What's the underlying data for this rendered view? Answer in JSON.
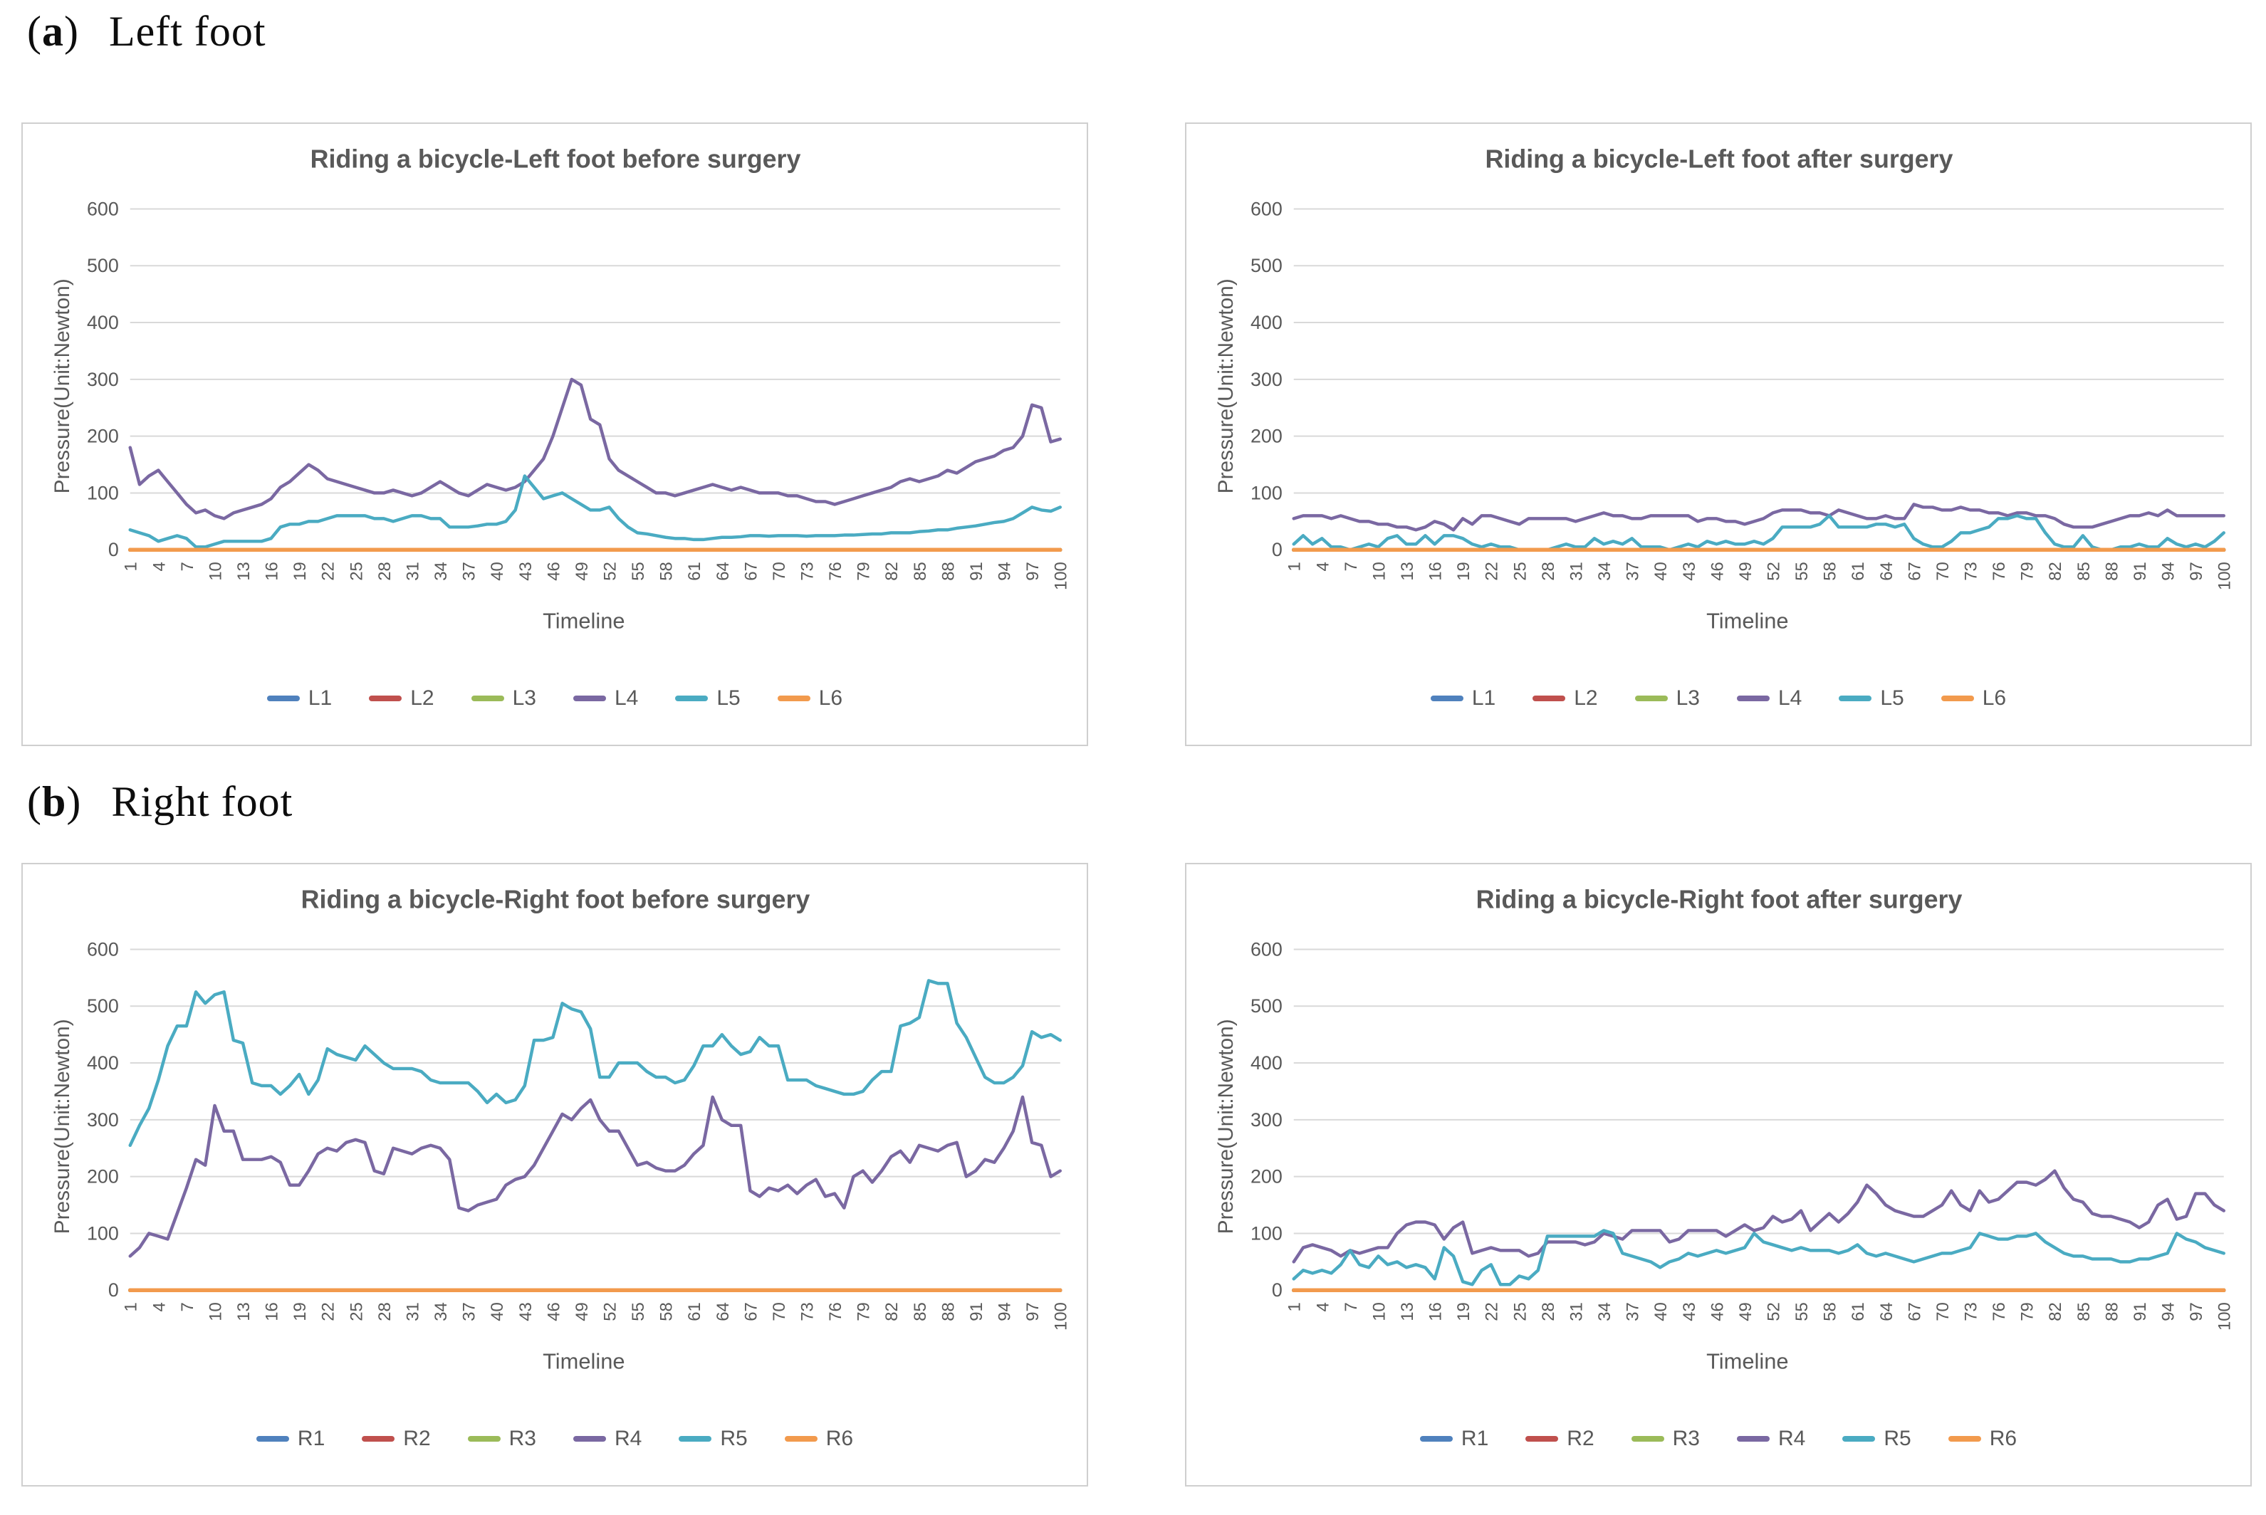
{
  "style": {
    "text_color": "#595959",
    "grid_color": "#d9d9d9",
    "border_color": "#cfcfcf",
    "series_palette": [
      "#4f81bd",
      "#c0504d",
      "#9bbb59",
      "#7a68a2",
      "#4aabc2",
      "#f29a4d"
    ]
  },
  "sections": [
    {
      "open": "(",
      "letter": "a",
      "close": ")",
      "title": "Left foot"
    },
    {
      "open": "(",
      "letter": "b",
      "close": ")",
      "title": "Right foot"
    }
  ],
  "chart_data": [
    {
      "id": "left-before",
      "type": "line",
      "title": "Riding a bicycle-Left foot before surgery",
      "xlabel": "Timeline",
      "ylabel": "Pressure(Unit:Newton)",
      "ylim": [
        0,
        600
      ],
      "yticks": [
        0,
        100,
        200,
        300,
        400,
        500,
        600
      ],
      "xticks": [
        1,
        4,
        7,
        10,
        13,
        16,
        19,
        22,
        25,
        28,
        31,
        34,
        37,
        40,
        43,
        46,
        49,
        52,
        55,
        58,
        61,
        64,
        67,
        70,
        73,
        76,
        79,
        82,
        85,
        88,
        91,
        94,
        97,
        100
      ],
      "x_range": [
        1,
        100
      ],
      "points": 100,
      "grid": true,
      "legend_position": "bottom",
      "series": [
        {
          "name": "L1",
          "color": "#4f81bd",
          "flat": 0
        },
        {
          "name": "L2",
          "color": "#c0504d",
          "flat": 0
        },
        {
          "name": "L3",
          "color": "#9bbb59",
          "flat": 0
        },
        {
          "name": "L4",
          "color": "#7a68a2",
          "values": [
            180,
            115,
            130,
            140,
            120,
            100,
            80,
            65,
            70,
            60,
            55,
            65,
            70,
            75,
            80,
            90,
            110,
            120,
            135,
            150,
            140,
            125,
            120,
            115,
            110,
            105,
            100,
            100,
            105,
            100,
            95,
            100,
            110,
            120,
            110,
            100,
            95,
            105,
            115,
            110,
            105,
            110,
            120,
            140,
            160,
            200,
            250,
            300,
            290,
            230,
            220,
            160,
            140,
            130,
            120,
            110,
            100,
            100,
            95,
            100,
            105,
            110,
            115,
            110,
            105,
            110,
            105,
            100,
            100,
            100,
            95,
            95,
            90,
            85,
            85,
            80,
            85,
            90,
            95,
            100,
            105,
            110,
            120,
            125,
            120,
            125,
            130,
            140,
            135,
            145,
            155,
            160,
            165,
            175,
            180,
            200,
            255,
            250,
            190,
            195
          ]
        },
        {
          "name": "L5",
          "color": "#4aabc2",
          "values": [
            35,
            30,
            25,
            15,
            20,
            25,
            20,
            5,
            5,
            10,
            15,
            15,
            15,
            15,
            15,
            20,
            40,
            45,
            45,
            50,
            50,
            55,
            60,
            60,
            60,
            60,
            55,
            55,
            50,
            55,
            60,
            60,
            55,
            55,
            40,
            40,
            40,
            42,
            45,
            45,
            50,
            70,
            130,
            110,
            90,
            95,
            100,
            90,
            80,
            70,
            70,
            75,
            55,
            40,
            30,
            28,
            25,
            22,
            20,
            20,
            18,
            18,
            20,
            22,
            22,
            23,
            25,
            25,
            24,
            25,
            25,
            25,
            24,
            25,
            25,
            25,
            26,
            26,
            27,
            28,
            28,
            30,
            30,
            30,
            32,
            33,
            35,
            35,
            38,
            40,
            42,
            45,
            48,
            50,
            55,
            65,
            75,
            70,
            68,
            75
          ]
        },
        {
          "name": "L6",
          "color": "#f29a4d",
          "flat": 0
        }
      ]
    },
    {
      "id": "left-after",
      "type": "line",
      "title": "Riding a bicycle-Left foot after surgery",
      "xlabel": "Timeline",
      "ylabel": "Pressure(Unit:Newton)",
      "ylim": [
        0,
        600
      ],
      "yticks": [
        0,
        100,
        200,
        300,
        400,
        500,
        600
      ],
      "xticks": [
        1,
        4,
        7,
        10,
        13,
        16,
        19,
        22,
        25,
        28,
        31,
        34,
        37,
        40,
        43,
        46,
        49,
        52,
        55,
        58,
        61,
        64,
        67,
        70,
        73,
        76,
        79,
        82,
        85,
        88,
        91,
        94,
        97,
        100
      ],
      "x_range": [
        1,
        100
      ],
      "points": 100,
      "grid": true,
      "legend_position": "bottom",
      "series": [
        {
          "name": "L1",
          "color": "#4f81bd",
          "flat": 0
        },
        {
          "name": "L2",
          "color": "#c0504d",
          "flat": 0
        },
        {
          "name": "L3",
          "color": "#9bbb59",
          "flat": 0
        },
        {
          "name": "L4",
          "color": "#7a68a2",
          "values": [
            55,
            60,
            60,
            60,
            55,
            60,
            55,
            50,
            50,
            45,
            45,
            40,
            40,
            35,
            40,
            50,
            45,
            35,
            55,
            45,
            60,
            60,
            55,
            50,
            45,
            55,
            55,
            55,
            55,
            55,
            50,
            55,
            60,
            65,
            60,
            60,
            55,
            55,
            60,
            60,
            60,
            60,
            60,
            50,
            55,
            55,
            50,
            50,
            45,
            50,
            55,
            65,
            70,
            70,
            70,
            65,
            65,
            60,
            70,
            65,
            60,
            55,
            55,
            60,
            55,
            55,
            80,
            75,
            75,
            70,
            70,
            75,
            70,
            70,
            65,
            65,
            60,
            65,
            65,
            60,
            60,
            55,
            45,
            40,
            40,
            40,
            45,
            50,
            55,
            60,
            60,
            65,
            60,
            70,
            60,
            60,
            60,
            60,
            60,
            60
          ]
        },
        {
          "name": "L5",
          "color": "#4aabc2",
          "values": [
            10,
            25,
            10,
            20,
            5,
            5,
            0,
            5,
            10,
            5,
            20,
            25,
            10,
            10,
            25,
            10,
            25,
            25,
            20,
            10,
            5,
            10,
            5,
            5,
            0,
            0,
            0,
            0,
            5,
            10,
            5,
            5,
            20,
            10,
            15,
            10,
            20,
            5,
            5,
            5,
            0,
            5,
            10,
            5,
            15,
            10,
            15,
            10,
            10,
            15,
            10,
            20,
            40,
            40,
            40,
            40,
            45,
            60,
            40,
            40,
            40,
            40,
            45,
            45,
            40,
            45,
            20,
            10,
            5,
            5,
            15,
            30,
            30,
            35,
            40,
            55,
            55,
            60,
            55,
            55,
            30,
            10,
            5,
            5,
            25,
            5,
            0,
            0,
            5,
            5,
            10,
            5,
            5,
            20,
            10,
            5,
            10,
            5,
            15,
            30
          ]
        },
        {
          "name": "L6",
          "color": "#f29a4d",
          "flat": 0
        }
      ]
    },
    {
      "id": "right-before",
      "type": "line",
      "title": "Riding a bicycle-Right foot before surgery",
      "xlabel": "Timeline",
      "ylabel": "Pressure(Unit:Newton)",
      "ylim": [
        0,
        600
      ],
      "yticks": [
        0,
        100,
        200,
        300,
        400,
        500,
        600
      ],
      "xticks": [
        1,
        4,
        7,
        10,
        13,
        16,
        19,
        22,
        25,
        28,
        31,
        34,
        37,
        40,
        43,
        46,
        49,
        52,
        55,
        58,
        61,
        64,
        67,
        70,
        73,
        76,
        79,
        82,
        85,
        88,
        91,
        94,
        97,
        100
      ],
      "x_range": [
        1,
        100
      ],
      "points": 100,
      "grid": true,
      "legend_position": "bottom",
      "series": [
        {
          "name": "R1",
          "color": "#4f81bd",
          "flat": 0
        },
        {
          "name": "R2",
          "color": "#c0504d",
          "flat": 0
        },
        {
          "name": "R3",
          "color": "#9bbb59",
          "flat": 0
        },
        {
          "name": "R4",
          "color": "#7a68a2",
          "values": [
            60,
            75,
            100,
            95,
            90,
            135,
            180,
            230,
            220,
            325,
            280,
            280,
            230,
            230,
            230,
            235,
            225,
            185,
            185,
            210,
            240,
            250,
            245,
            260,
            265,
            260,
            210,
            205,
            250,
            245,
            240,
            250,
            255,
            250,
            230,
            145,
            140,
            150,
            155,
            160,
            185,
            195,
            200,
            220,
            250,
            280,
            310,
            300,
            320,
            335,
            300,
            280,
            280,
            250,
            220,
            225,
            215,
            210,
            210,
            220,
            240,
            255,
            340,
            300,
            290,
            290,
            175,
            165,
            180,
            175,
            185,
            170,
            185,
            195,
            165,
            170,
            145,
            200,
            210,
            190,
            210,
            235,
            245,
            225,
            255,
            250,
            245,
            255,
            260,
            200,
            210,
            230,
            225,
            250,
            280,
            340,
            260,
            255,
            200,
            210
          ]
        },
        {
          "name": "R5",
          "color": "#4aabc2",
          "values": [
            255,
            290,
            320,
            370,
            430,
            465,
            465,
            525,
            505,
            520,
            525,
            440,
            435,
            365,
            360,
            360,
            345,
            360,
            380,
            345,
            370,
            425,
            415,
            410,
            405,
            430,
            415,
            400,
            390,
            390,
            390,
            385,
            370,
            365,
            365,
            365,
            365,
            350,
            330,
            345,
            330,
            335,
            360,
            440,
            440,
            445,
            505,
            495,
            490,
            460,
            375,
            375,
            400,
            400,
            400,
            385,
            375,
            375,
            365,
            370,
            395,
            430,
            430,
            450,
            430,
            415,
            420,
            445,
            430,
            430,
            370,
            370,
            370,
            360,
            355,
            350,
            345,
            345,
            350,
            370,
            385,
            385,
            465,
            470,
            480,
            545,
            540,
            540,
            470,
            445,
            410,
            375,
            365,
            365,
            375,
            395,
            455,
            445,
            450,
            440
          ]
        },
        {
          "name": "R6",
          "color": "#f29a4d",
          "flat": 0
        }
      ]
    },
    {
      "id": "right-after",
      "type": "line",
      "title": "Riding a bicycle-Right foot after surgery",
      "xlabel": "Timeline",
      "ylabel": "Pressure(Unit:Newton)",
      "ylim": [
        0,
        600
      ],
      "yticks": [
        0,
        100,
        200,
        300,
        400,
        500,
        600
      ],
      "xticks": [
        1,
        4,
        7,
        10,
        13,
        16,
        19,
        22,
        25,
        28,
        31,
        34,
        37,
        40,
        43,
        46,
        49,
        52,
        55,
        58,
        61,
        64,
        67,
        70,
        73,
        76,
        79,
        82,
        85,
        88,
        91,
        94,
        97,
        100
      ],
      "x_range": [
        1,
        100
      ],
      "points": 100,
      "grid": true,
      "legend_position": "bottom",
      "series": [
        {
          "name": "R1",
          "color": "#4f81bd",
          "flat": 0
        },
        {
          "name": "R2",
          "color": "#c0504d",
          "flat": 0
        },
        {
          "name": "R3",
          "color": "#9bbb59",
          "flat": 0
        },
        {
          "name": "R4",
          "color": "#7a68a2",
          "values": [
            50,
            75,
            80,
            75,
            70,
            60,
            70,
            65,
            70,
            75,
            75,
            100,
            115,
            120,
            120,
            115,
            90,
            110,
            120,
            65,
            70,
            75,
            70,
            70,
            70,
            60,
            65,
            85,
            85,
            85,
            85,
            80,
            85,
            100,
            95,
            90,
            105,
            105,
            105,
            105,
            85,
            90,
            105,
            105,
            105,
            105,
            95,
            105,
            115,
            105,
            110,
            130,
            120,
            125,
            140,
            105,
            120,
            135,
            120,
            135,
            155,
            185,
            170,
            150,
            140,
            135,
            130,
            130,
            140,
            150,
            175,
            150,
            140,
            175,
            155,
            160,
            175,
            190,
            190,
            185,
            195,
            210,
            180,
            160,
            155,
            135,
            130,
            130,
            125,
            120,
            110,
            120,
            150,
            160,
            125,
            130,
            170,
            170,
            150,
            140
          ]
        },
        {
          "name": "R5",
          "color": "#4aabc2",
          "values": [
            20,
            35,
            30,
            35,
            30,
            45,
            70,
            45,
            40,
            60,
            45,
            50,
            40,
            45,
            40,
            20,
            75,
            60,
            15,
            10,
            35,
            45,
            10,
            10,
            25,
            20,
            35,
            95,
            95,
            95,
            95,
            95,
            95,
            105,
            100,
            65,
            60,
            55,
            50,
            40,
            50,
            55,
            65,
            60,
            65,
            70,
            65,
            70,
            75,
            100,
            85,
            80,
            75,
            70,
            75,
            70,
            70,
            70,
            65,
            70,
            80,
            65,
            60,
            65,
            60,
            55,
            50,
            55,
            60,
            65,
            65,
            70,
            75,
            100,
            95,
            90,
            90,
            95,
            95,
            100,
            85,
            75,
            65,
            60,
            60,
            55,
            55,
            55,
            50,
            50,
            55,
            55,
            60,
            65,
            100,
            90,
            85,
            75,
            70,
            65
          ]
        },
        {
          "name": "R6",
          "color": "#f29a4d",
          "flat": 0
        }
      ]
    }
  ]
}
